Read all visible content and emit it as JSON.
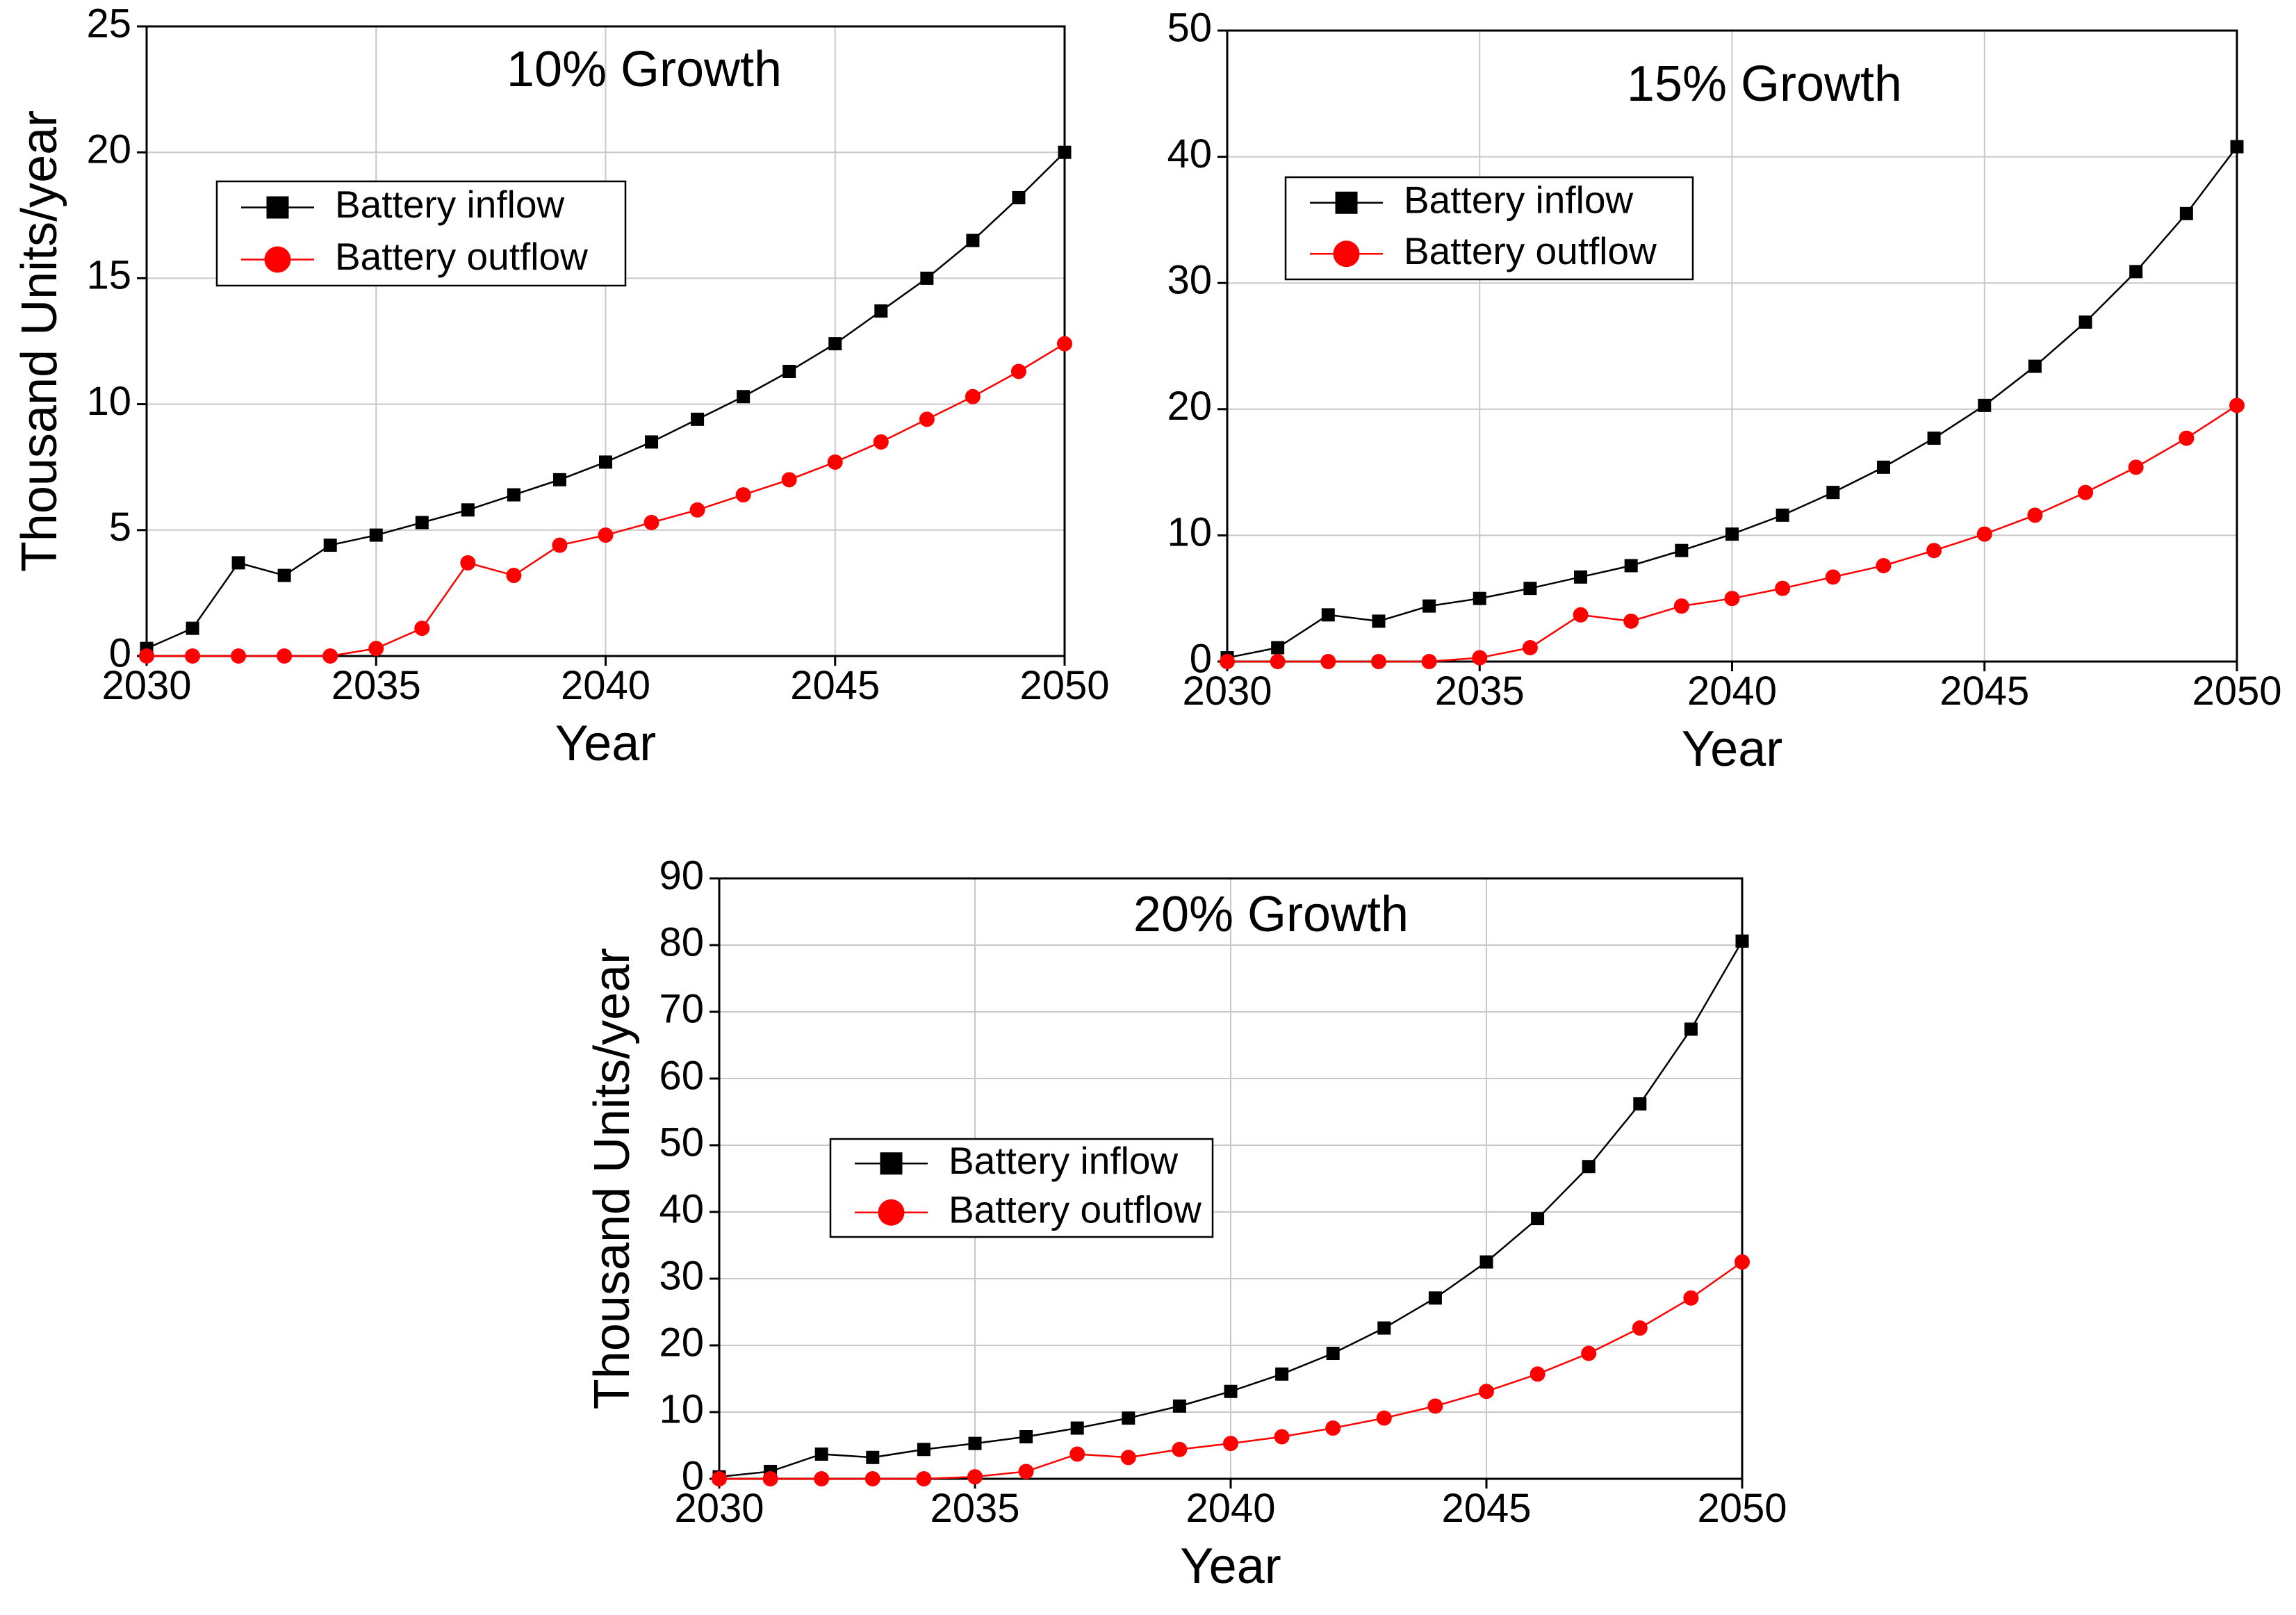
{
  "chart_data": [
    {
      "type": "line",
      "title": "10% Growth",
      "x_label": "Year",
      "y_label": "Thousand Units/year",
      "x": [
        2030,
        2031,
        2032,
        2033,
        2034,
        2035,
        2036,
        2037,
        2038,
        2039,
        2040,
        2041,
        2042,
        2043,
        2044,
        2045,
        2046,
        2047,
        2048,
        2049,
        2050
      ],
      "series": [
        {
          "name": "Battery inflow",
          "color": "#000000",
          "marker": "square",
          "values": [
            0.3,
            1.1,
            3.7,
            3.2,
            4.4,
            4.8,
            5.3,
            5.8,
            6.4,
            7.0,
            7.7,
            8.5,
            9.4,
            10.3,
            11.3,
            12.4,
            13.7,
            15.0,
            16.5,
            18.2,
            20.0
          ]
        },
        {
          "name": "Battery outflow",
          "color": "#ff0000",
          "marker": "circle",
          "values": [
            0,
            0,
            0,
            0,
            0,
            0.3,
            1.1,
            3.7,
            3.2,
            4.4,
            4.8,
            5.3,
            5.8,
            6.4,
            7.0,
            7.7,
            8.5,
            9.4,
            10.3,
            11.3,
            12.4
          ]
        }
      ],
      "xlim": [
        2030,
        2050
      ],
      "xticks": [
        2030,
        2035,
        2040,
        2045,
        2050
      ],
      "ylim": [
        0,
        25
      ],
      "yticks": [
        0,
        5,
        10,
        15,
        20,
        25
      ],
      "grid": true
    },
    {
      "type": "line",
      "title": "15% Growth",
      "x_label": "Year",
      "x": [
        2030,
        2031,
        2032,
        2033,
        2034,
        2035,
        2036,
        2037,
        2038,
        2039,
        2040,
        2041,
        2042,
        2043,
        2044,
        2045,
        2046,
        2047,
        2048,
        2049,
        2050
      ],
      "series": [
        {
          "name": "Battery inflow",
          "color": "#000000",
          "marker": "square",
          "values": [
            0.3,
            1.1,
            3.7,
            3.2,
            4.4,
            5.0,
            5.8,
            6.7,
            7.6,
            8.8,
            10.1,
            11.6,
            13.4,
            15.4,
            17.7,
            20.3,
            23.4,
            26.9,
            30.9,
            35.5,
            40.8
          ]
        },
        {
          "name": "Battery outflow",
          "color": "#ff0000",
          "marker": "circle",
          "values": [
            0,
            0,
            0,
            0,
            0,
            0.3,
            1.1,
            3.7,
            3.2,
            4.4,
            5.0,
            5.8,
            6.7,
            7.6,
            8.8,
            10.1,
            11.6,
            13.4,
            15.4,
            17.7,
            20.3
          ]
        }
      ],
      "xlim": [
        2030,
        2050
      ],
      "xticks": [
        2030,
        2035,
        2040,
        2045,
        2050
      ],
      "ylim": [
        0,
        50
      ],
      "yticks": [
        0,
        10,
        20,
        30,
        40,
        50
      ],
      "grid": true
    },
    {
      "type": "line",
      "title": "20% Growth",
      "x_label": "Year",
      "y_label": "Thousand Units/year",
      "x": [
        2030,
        2031,
        2032,
        2033,
        2034,
        2035,
        2036,
        2037,
        2038,
        2039,
        2040,
        2041,
        2042,
        2043,
        2044,
        2045,
        2046,
        2047,
        2048,
        2049,
        2050
      ],
      "series": [
        {
          "name": "Battery inflow",
          "color": "#000000",
          "marker": "square",
          "values": [
            0.3,
            1.1,
            3.7,
            3.2,
            4.4,
            5.3,
            6.3,
            7.6,
            9.1,
            10.9,
            13.1,
            15.7,
            18.8,
            22.6,
            27.1,
            32.5,
            39.0,
            46.8,
            56.2,
            67.4,
            80.6
          ]
        },
        {
          "name": "Battery outflow",
          "color": "#ff0000",
          "marker": "circle",
          "values": [
            0,
            0,
            0,
            0,
            0,
            0.3,
            1.1,
            3.7,
            3.2,
            4.4,
            5.3,
            6.3,
            7.6,
            9.1,
            10.9,
            13.1,
            15.7,
            18.8,
            22.6,
            27.1,
            32.5
          ]
        }
      ],
      "xlim": [
        2030,
        2050
      ],
      "xticks": [
        2030,
        2035,
        2040,
        2045,
        2050
      ],
      "ylim": [
        0,
        90
      ],
      "yticks": [
        0,
        10,
        20,
        30,
        40,
        50,
        60,
        70,
        80,
        90
      ],
      "grid": true
    }
  ]
}
